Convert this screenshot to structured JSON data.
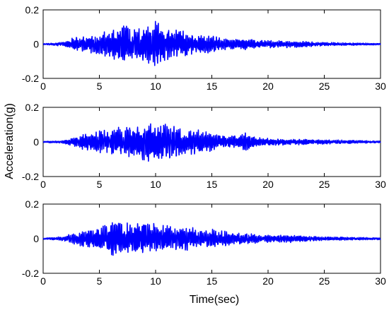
{
  "chart_data": [
    {
      "type": "line",
      "title": "",
      "xlabel": "",
      "ylabel": "Acceleration(g)",
      "xlim": [
        0,
        30
      ],
      "ylim": [
        -0.2,
        0.2
      ],
      "xticks": [
        "0",
        "5",
        "10",
        "15",
        "20",
        "25",
        "30"
      ],
      "yticks": [
        "-0.2",
        "0",
        "0.2"
      ],
      "grid": false,
      "series": [
        {
          "color": "#0000ff",
          "x": [
            0,
            1,
            2,
            2.5,
            3,
            3.5,
            4,
            4.5,
            5,
            5.5,
            6,
            6.5,
            7,
            7.5,
            8,
            8.5,
            9,
            9.5,
            10,
            10.5,
            11,
            11.5,
            12,
            12.5,
            13,
            13.5,
            14,
            14.5,
            15,
            15.5,
            16,
            16.5,
            17,
            17.5,
            18,
            18.5,
            19,
            19.5,
            20,
            21,
            22,
            23,
            24,
            25,
            26,
            27,
            28,
            29,
            30
          ],
          "envelope": [
            0.004,
            0.006,
            0.015,
            0.03,
            0.035,
            0.04,
            0.045,
            0.05,
            0.06,
            0.07,
            0.07,
            0.09,
            0.1,
            0.09,
            0.08,
            0.09,
            0.09,
            0.1,
            0.12,
            0.1,
            0.09,
            0.08,
            0.07,
            0.07,
            0.06,
            0.05,
            0.05,
            0.05,
            0.045,
            0.04,
            0.03,
            0.03,
            0.025,
            0.025,
            0.03,
            0.025,
            0.02,
            0.02,
            0.02,
            0.02,
            0.018,
            0.015,
            0.012,
            0.01,
            0.008,
            0.007,
            0.006,
            0.005,
            0.004
          ]
        }
      ]
    },
    {
      "type": "line",
      "title": "",
      "xlabel": "",
      "ylabel": "Acceleration(g)",
      "xlim": [
        0,
        30
      ],
      "ylim": [
        -0.2,
        0.2
      ],
      "xticks": [
        "0",
        "5",
        "10",
        "15",
        "20",
        "25",
        "30"
      ],
      "yticks": [
        "-0.2",
        "0",
        "0.2"
      ],
      "grid": false,
      "series": [
        {
          "color": "#0000ff",
          "x": [
            0,
            1,
            2,
            2.5,
            3,
            3.5,
            4,
            4.5,
            5,
            5.5,
            6,
            6.5,
            7,
            7.5,
            8,
            8.5,
            9,
            9.5,
            10,
            10.5,
            11,
            11.5,
            12,
            12.5,
            13,
            13.5,
            14,
            14.5,
            15,
            15.5,
            16,
            16.5,
            17,
            17.5,
            18,
            18.5,
            19,
            19.5,
            20,
            21,
            22,
            23,
            24,
            25,
            26,
            27,
            28,
            29,
            30
          ],
          "envelope": [
            0.004,
            0.005,
            0.01,
            0.02,
            0.03,
            0.04,
            0.045,
            0.05,
            0.06,
            0.065,
            0.07,
            0.07,
            0.08,
            0.085,
            0.09,
            0.09,
            0.1,
            0.1,
            0.11,
            0.1,
            0.09,
            0.085,
            0.08,
            0.075,
            0.07,
            0.065,
            0.06,
            0.055,
            0.05,
            0.04,
            0.035,
            0.03,
            0.03,
            0.035,
            0.05,
            0.03,
            0.025,
            0.02,
            0.02,
            0.018,
            0.016,
            0.015,
            0.013,
            0.012,
            0.01,
            0.009,
            0.008,
            0.006,
            0.005
          ]
        }
      ]
    },
    {
      "type": "line",
      "title": "",
      "xlabel": "Time(sec)",
      "ylabel": "Acceleration(g)",
      "xlim": [
        0,
        30
      ],
      "ylim": [
        -0.2,
        0.2
      ],
      "xticks": [
        "0",
        "5",
        "10",
        "15",
        "20",
        "25",
        "30"
      ],
      "yticks": [
        "-0.2",
        "0",
        "0.2"
      ],
      "grid": false,
      "series": [
        {
          "color": "#0000ff",
          "x": [
            0,
            1,
            2,
            2.5,
            3,
            3.5,
            4,
            4.5,
            5,
            5.5,
            6,
            6.5,
            7,
            7.5,
            8,
            8.5,
            9,
            9.5,
            10,
            10.5,
            11,
            11.5,
            12,
            12.5,
            13,
            13.5,
            14,
            14.5,
            15,
            15.5,
            16,
            16.5,
            17,
            17.5,
            18,
            18.5,
            19,
            19.5,
            20,
            21,
            22,
            23,
            24,
            25,
            26,
            27,
            28,
            29,
            30
          ],
          "envelope": [
            0.004,
            0.006,
            0.015,
            0.025,
            0.03,
            0.04,
            0.045,
            0.05,
            0.06,
            0.07,
            0.08,
            0.09,
            0.09,
            0.09,
            0.08,
            0.08,
            0.09,
            0.08,
            0.08,
            0.07,
            0.07,
            0.07,
            0.065,
            0.065,
            0.06,
            0.055,
            0.05,
            0.05,
            0.05,
            0.045,
            0.04,
            0.035,
            0.03,
            0.03,
            0.028,
            0.025,
            0.022,
            0.02,
            0.02,
            0.018,
            0.02,
            0.015,
            0.012,
            0.01,
            0.009,
            0.008,
            0.007,
            0.006,
            0.005
          ]
        }
      ]
    }
  ]
}
